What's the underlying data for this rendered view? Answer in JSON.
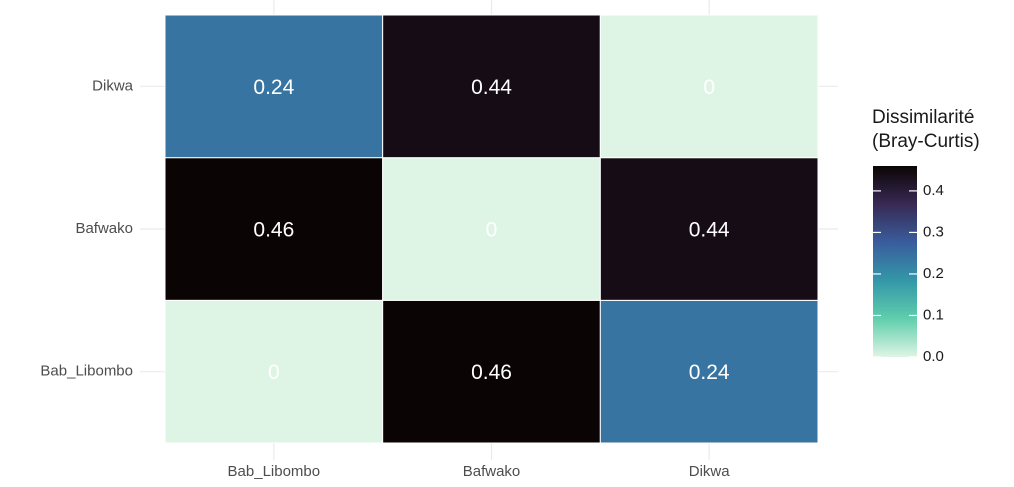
{
  "chart_data": {
    "type": "heatmap",
    "x_categories": [
      "Bab_Libombo",
      "Bafwako",
      "Dikwa"
    ],
    "y_categories": [
      "Bab_Libombo",
      "Bafwako",
      "Dikwa"
    ],
    "values": [
      [
        0,
        0.46,
        0.24
      ],
      [
        0.46,
        0,
        0.44
      ],
      [
        0.24,
        0.44,
        0
      ]
    ],
    "legend_title": [
      "Dissimilarité",
      "(Bray-Curtis)"
    ],
    "clim": [
      0,
      0.46
    ],
    "cticks": [
      {
        "value": 0,
        "label": "0.0"
      },
      0.1,
      0.2,
      0.3,
      0.4
    ],
    "colors": [
      "#def5e5",
      "#60ceac",
      "#3497a9",
      "#395d9c",
      "#382a54",
      "#0b0405"
    ],
    "grid": true
  }
}
